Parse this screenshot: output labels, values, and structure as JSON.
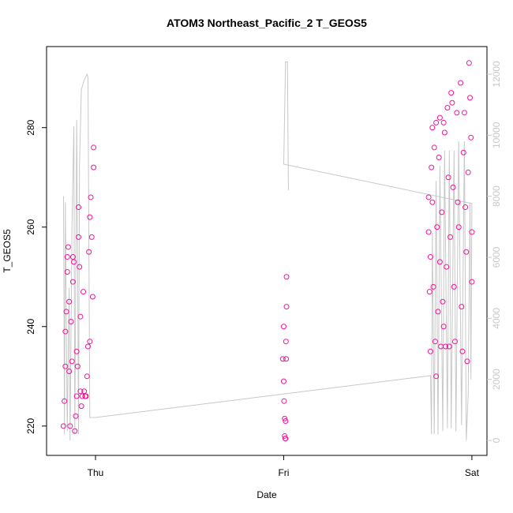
{
  "chart_data": {
    "type": "scatter",
    "title": "ATOM3 Northeast_Pacific_2 T_GEOS5",
    "x_label": "Date",
    "y_label": "T_GEOS5",
    "color": "#f0159a",
    "x": [
      -0.17,
      -0.165,
      -0.16,
      -0.16,
      -0.155,
      -0.15,
      -0.15,
      -0.145,
      -0.14,
      -0.14,
      -0.135,
      -0.13,
      -0.125,
      -0.12,
      -0.12,
      -0.115,
      -0.11,
      -0.105,
      -0.1,
      -0.1,
      -0.095,
      -0.09,
      -0.09,
      -0.085,
      -0.08,
      -0.08,
      -0.075,
      -0.07,
      -0.065,
      -0.06,
      -0.055,
      -0.05,
      -0.045,
      -0.04,
      -0.035,
      -0.03,
      -0.03,
      -0.025,
      -0.02,
      -0.015,
      -0.01,
      -0.01,
      1.0,
      0.995,
      1.0,
      1.002,
      1.005,
      1.005,
      1.008,
      1.01,
      1.015,
      1.015,
      1.012,
      1.013,
      1.01,
      1.77,
      1.77,
      1.775,
      1.78,
      1.78,
      1.785,
      1.79,
      1.79,
      1.795,
      1.8,
      1.805,
      1.81,
      1.81,
      1.815,
      1.82,
      1.825,
      1.83,
      1.83,
      1.835,
      1.84,
      1.845,
      1.85,
      1.85,
      1.855,
      1.86,
      1.865,
      1.87,
      1.875,
      1.88,
      1.885,
      1.89,
      1.895,
      1.9,
      1.905,
      1.91,
      1.92,
      1.925,
      1.93,
      1.94,
      1.945,
      1.95,
      1.955,
      1.96,
      1.965,
      1.97,
      1.975,
      1.98,
      1.985,
      1.99,
      1.995,
      2.0,
      2.0
    ],
    "values": [
      220,
      225,
      232,
      239,
      243,
      251,
      254,
      256,
      231,
      245,
      220,
      241,
      233,
      254,
      249,
      253,
      219,
      222,
      226,
      235,
      232,
      258,
      264,
      252,
      227,
      242,
      224,
      226,
      247,
      227,
      226,
      226,
      230,
      236,
      255,
      237,
      262,
      266,
      258,
      246,
      272,
      276,
      240,
      233.5,
      229,
      225,
      221.5,
      218,
      217.5,
      221,
      250,
      244,
      237,
      233.5,
      217.5,
      266,
      259,
      247,
      235,
      254,
      272,
      280,
      265,
      248,
      276,
      237,
      230,
      281,
      260,
      243,
      274,
      282,
      253,
      236,
      263,
      245,
      240,
      281,
      279,
      236,
      252,
      284,
      270,
      236,
      258,
      287,
      285,
      268,
      248,
      237,
      283,
      265,
      260,
      289,
      244,
      235,
      275,
      283,
      264,
      255,
      233,
      271,
      293,
      286,
      278,
      259,
      249
    ],
    "series": [
      {
        "type": "line",
        "axis": "y2",
        "color": "#c8c8c8",
        "x": [
          -0.17,
          -0.165,
          -0.16,
          -0.15,
          -0.14,
          -0.135,
          -0.125,
          -0.115,
          -0.11,
          -0.1,
          -0.095,
          -0.09,
          -0.085,
          -0.075,
          -0.06,
          -0.045,
          -0.04,
          -0.03,
          0.0,
          1.78,
          1.785,
          1.79,
          1.8,
          1.81,
          1.82,
          1.83,
          1.845,
          1.855,
          1.87,
          1.88,
          1.89,
          1.905,
          1.915,
          1.93,
          1.945,
          1.96,
          1.97,
          1.98,
          1.99,
          1.995,
          2.0,
          1.0,
          1.01,
          1.02,
          1.025
        ],
        "values": [
          8000,
          200,
          7800,
          300,
          5000,
          0,
          7000,
          10300,
          200,
          10500,
          6000,
          200,
          9000,
          11500,
          11800,
          12000,
          11900,
          750,
          750,
          2120,
          200,
          6800,
          200,
          8500,
          200,
          9000,
          300,
          9500,
          400,
          9500,
          400,
          9500,
          300,
          9800,
          500,
          9800,
          0,
          1500,
          7800,
          2000,
          7760,
          9050,
          12400,
          12400,
          8200
        ]
      }
    ],
    "xlim": [
      -0.26,
      2.08
    ],
    "xticks": [
      {
        "value": 0,
        "label": "Thu"
      },
      {
        "value": 1,
        "label": "Fri"
      },
      {
        "value": 2,
        "label": "Sat"
      }
    ],
    "ylim": [
      214.1,
      296.3
    ],
    "yticks": [
      220,
      240,
      260,
      280
    ],
    "y2lim": [
      -491,
      12904
    ],
    "y2ticks": [
      0,
      2000,
      4000,
      6000,
      8000,
      10000,
      12000
    ],
    "y2_color": "#c8c8c8"
  }
}
